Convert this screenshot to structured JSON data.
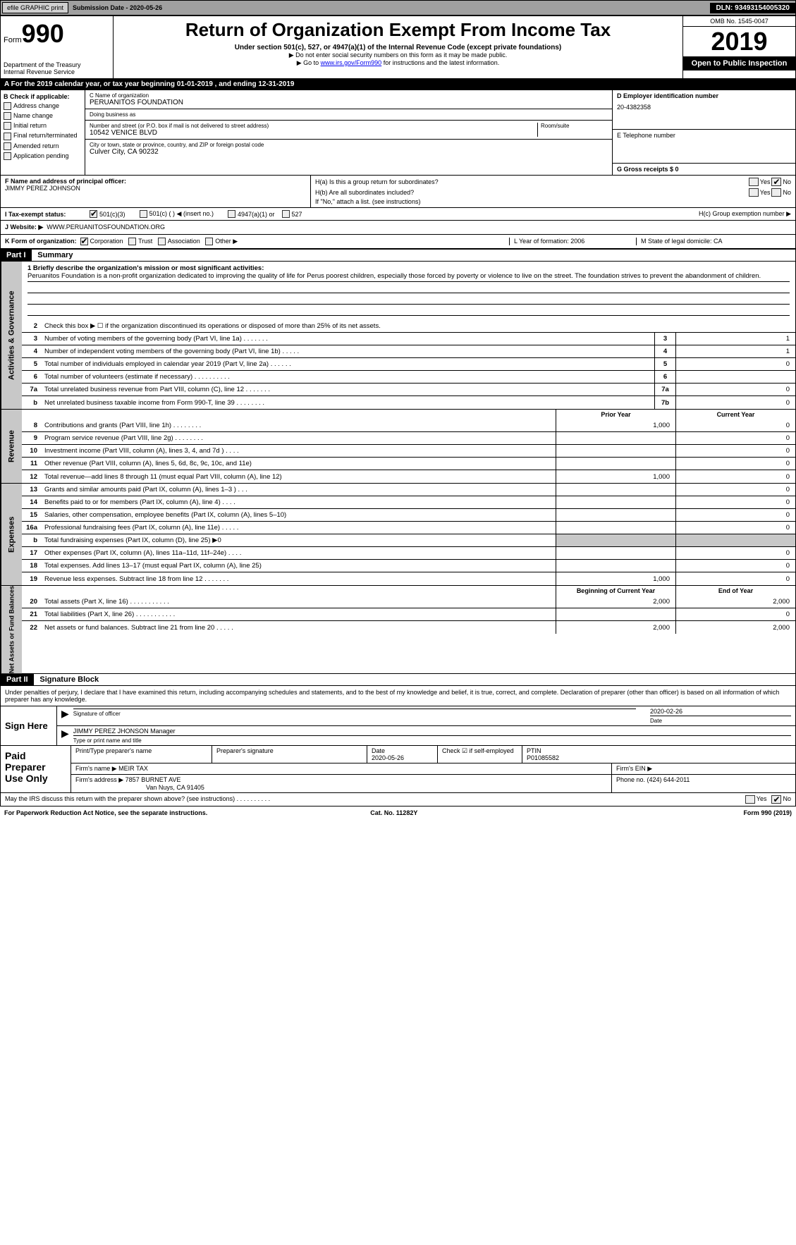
{
  "topbar": {
    "efile_label": "efile GRAPHIC print",
    "submission_label": "Submission Date - 2020-05-26",
    "dln_label": "DLN: 93493154005320"
  },
  "header": {
    "form_prefix": "Form",
    "form_number": "990",
    "dept": "Department of the Treasury",
    "irs": "Internal Revenue Service",
    "title": "Return of Organization Exempt From Income Tax",
    "sub1": "Under section 501(c), 527, or 4947(a)(1) of the Internal Revenue Code (except private foundations)",
    "sub2": "▶ Do not enter social security numbers on this form as it may be made public.",
    "sub3_pre": "▶ Go to ",
    "sub3_link": "www.irs.gov/Form990",
    "sub3_post": " for instructions and the latest information.",
    "omb": "OMB No. 1545-0047",
    "year": "2019",
    "otp": "Open to Public Inspection"
  },
  "rowA": {
    "text_pre": "A   For the 2019 calendar year, or tax year beginning ",
    "begin": "01-01-2019",
    "mid": "     , and ending ",
    "end": "12-31-2019"
  },
  "B": {
    "header": "B Check if applicable:",
    "items": [
      "Address change",
      "Name change",
      "Initial return",
      "Final return/terminated",
      "Amended return",
      "Application pending"
    ]
  },
  "C": {
    "name_lbl": "C Name of organization",
    "name": "PERUANITOS FOUNDATION",
    "dba_lbl": "Doing business as",
    "dba": "",
    "addr_lbl": "Number and street (or P.O. box if mail is not delivered to street address)",
    "room_lbl": "Room/suite",
    "addr": "10542 VENICE BLVD",
    "city_lbl": "City or town, state or province, country, and ZIP or foreign postal code",
    "city": "Culver City, CA  90232"
  },
  "D": {
    "lbl": "D Employer identification number",
    "val": "20-4382358"
  },
  "E": {
    "lbl": "E Telephone number",
    "val": ""
  },
  "G": {
    "lbl": "G Gross receipts $ 0"
  },
  "F": {
    "lbl": "F  Name and address of principal officer:",
    "val": "JIMMY PEREZ JOHNSON"
  },
  "H": {
    "a_lbl": "H(a)   Is this a group return for subordinates?",
    "b_lbl": "H(b)   Are all subordinates included?",
    "b_note": "If \"No,\" attach a list. (see instructions)",
    "c_lbl": "H(c)   Group exemption number ▶"
  },
  "I": {
    "lbl": "I     Tax-exempt status:",
    "opts": [
      "501(c)(3)",
      "501(c) (  ) ◀ (insert no.)",
      "4947(a)(1) or",
      "527"
    ]
  },
  "J": {
    "lbl": "J   Website: ▶",
    "val": "WWW.PERUANITOSFOUNDATION.ORG"
  },
  "K": {
    "lbl": "K Form of organization:",
    "opts": [
      "Corporation",
      "Trust",
      "Association",
      "Other ▶"
    ]
  },
  "L": {
    "lbl": "L Year of formation: 2006"
  },
  "M": {
    "lbl": "M State of legal domicile: CA"
  },
  "partI": {
    "hdr": "Part I",
    "title": "Summary"
  },
  "summary": {
    "s1_lbl": "1  Briefly describe the organization's mission or most significant activities:",
    "s1_val": "Peruanitos Foundation is a non-profit organization dedicated to improving the quality of life for Perus poorest children, especially those forced by poverty or violence to live on the street. The foundation strives to prevent the abandonment of children.",
    "s2": "Check this box ▶ ☐  if the organization discontinued its operations or disposed of more than 25% of its net assets.",
    "lines_ag": [
      {
        "n": "3",
        "d": "Number of voting members of the governing body (Part VI, line 1a)   .     .     .     .     .     .     .",
        "b": "3",
        "v": "1"
      },
      {
        "n": "4",
        "d": "Number of independent voting members of the governing body (Part VI, line 1b)   .     .     .     .     .",
        "b": "4",
        "v": "1"
      },
      {
        "n": "5",
        "d": "Total number of individuals employed in calendar year 2019 (Part V, line 2a)   .     .     .     .     .     .",
        "b": "5",
        "v": "0"
      },
      {
        "n": "6",
        "d": "Total number of volunteers (estimate if necessary)   .     .     .     .     .     .     .     .     .     .",
        "b": "6",
        "v": ""
      },
      {
        "n": "7a",
        "d": "Total unrelated business revenue from Part VIII, column (C), line 12   .     .     .     .     .     .     .",
        "b": "7a",
        "v": "0"
      },
      {
        "n": "b",
        "d": "Net unrelated business taxable income from Form 990-T, line 39   .     .     .     .     .     .     .     .",
        "b": "7b",
        "v": "0"
      }
    ],
    "col_prior": "Prior Year",
    "col_curr": "Current Year",
    "rev": [
      {
        "n": "8",
        "d": "Contributions and grants (Part VIII, line 1h)   .     .     .     .     .     .     .     .",
        "p": "1,000",
        "c": "0"
      },
      {
        "n": "9",
        "d": "Program service revenue (Part VIII, line 2g)   .     .     .     .     .     .     .     .",
        "p": "",
        "c": "0"
      },
      {
        "n": "10",
        "d": "Investment income (Part VIII, column (A), lines 3, 4, and 7d )   .     .     .     .",
        "p": "",
        "c": "0"
      },
      {
        "n": "11",
        "d": "Other revenue (Part VIII, column (A), lines 5, 6d, 8c, 9c, 10c, and 11e)",
        "p": "",
        "c": "0"
      },
      {
        "n": "12",
        "d": "Total revenue—add lines 8 through 11 (must equal Part VIII, column (A), line 12)",
        "p": "1,000",
        "c": "0"
      }
    ],
    "exp": [
      {
        "n": "13",
        "d": "Grants and similar amounts paid (Part IX, column (A), lines 1–3 )   .     .     .",
        "p": "",
        "c": "0"
      },
      {
        "n": "14",
        "d": "Benefits paid to or for members (Part IX, column (A), line 4)   .     .     .     .",
        "p": "",
        "c": "0"
      },
      {
        "n": "15",
        "d": "Salaries, other compensation, employee benefits (Part IX, column (A), lines 5–10)",
        "p": "",
        "c": "0"
      },
      {
        "n": "16a",
        "d": "Professional fundraising fees (Part IX, column (A), line 11e)   .     .     .     .     .",
        "p": "",
        "c": "0"
      },
      {
        "n": "b",
        "d": "Total fundraising expenses (Part IX, column (D), line 25) ▶0",
        "p": "shade",
        "c": "shade"
      },
      {
        "n": "17",
        "d": "Other expenses (Part IX, column (A), lines 11a–11d, 11f–24e)   .     .     .     .",
        "p": "",
        "c": "0"
      },
      {
        "n": "18",
        "d": "Total expenses. Add lines 13–17 (must equal Part IX, column (A), line 25)",
        "p": "",
        "c": "0"
      },
      {
        "n": "19",
        "d": "Revenue less expenses. Subtract line 18 from line 12   .     .     .     .     .     .     .",
        "p": "1,000",
        "c": "0"
      }
    ],
    "col_begin": "Beginning of Current Year",
    "col_end": "End of Year",
    "net": [
      {
        "n": "20",
        "d": "Total assets (Part X, line 16)   .     .     .     .     .     .     .     .     .     .     .",
        "p": "2,000",
        "c": "2,000"
      },
      {
        "n": "21",
        "d": "Total liabilities (Part X, line 26)   .     .     .     .     .     .     .     .     .     .     .",
        "p": "",
        "c": "0"
      },
      {
        "n": "22",
        "d": "Net assets or fund balances. Subtract line 21 from line 20   .     .     .     .     .",
        "p": "2,000",
        "c": "2,000"
      }
    ],
    "sidebars": {
      "ag": "Activities & Governance",
      "rev": "Revenue",
      "exp": "Expenses",
      "net": "Net Assets or Fund Balances"
    }
  },
  "partII": {
    "hdr": "Part II",
    "title": "Signature Block"
  },
  "sig": {
    "decl": "Under penalties of perjury, I declare that I have examined this return, including accompanying schedules and statements, and to the best of my knowledge and belief, it is true, correct, and complete. Declaration of preparer (other than officer) is based on all information of which preparer has any knowledge.",
    "sign_here": "Sign Here",
    "sig_officer": "Signature of officer",
    "date": "2020-02-26",
    "date_lbl": "Date",
    "name": "JIMMY PEREZ JHONSON  Manager",
    "name_lbl": "Type or print name and title"
  },
  "prep": {
    "hdr": "Paid Preparer Use Only",
    "r1": {
      "c1": "Print/Type preparer's name",
      "c2": "Preparer's signature",
      "c3": "Date",
      "c3v": "2020-05-26",
      "c4": "Check ☑ if self-employed",
      "c5": "PTIN",
      "c5v": "P01085582"
    },
    "r2": {
      "lbl": "Firm's name    ▶",
      "val": "MEIR TAX",
      "ein": "Firm's EIN ▶"
    },
    "r3": {
      "lbl": "Firm's address ▶",
      "val": "7857 BURNET AVE",
      "val2": "Van Nuys, CA  91405",
      "ph": "Phone no. (424) 644-2011"
    }
  },
  "footer_q": "May the IRS discuss this return with the preparer shown above? (see instructions)   .     .     .     .     .     .     .     .     .     .",
  "footer": {
    "l": "For Paperwork Reduction Act Notice, see the separate instructions.",
    "m": "Cat. No. 11282Y",
    "r": "Form 990 (2019)"
  },
  "yn": {
    "yes": "Yes",
    "no": "No"
  }
}
